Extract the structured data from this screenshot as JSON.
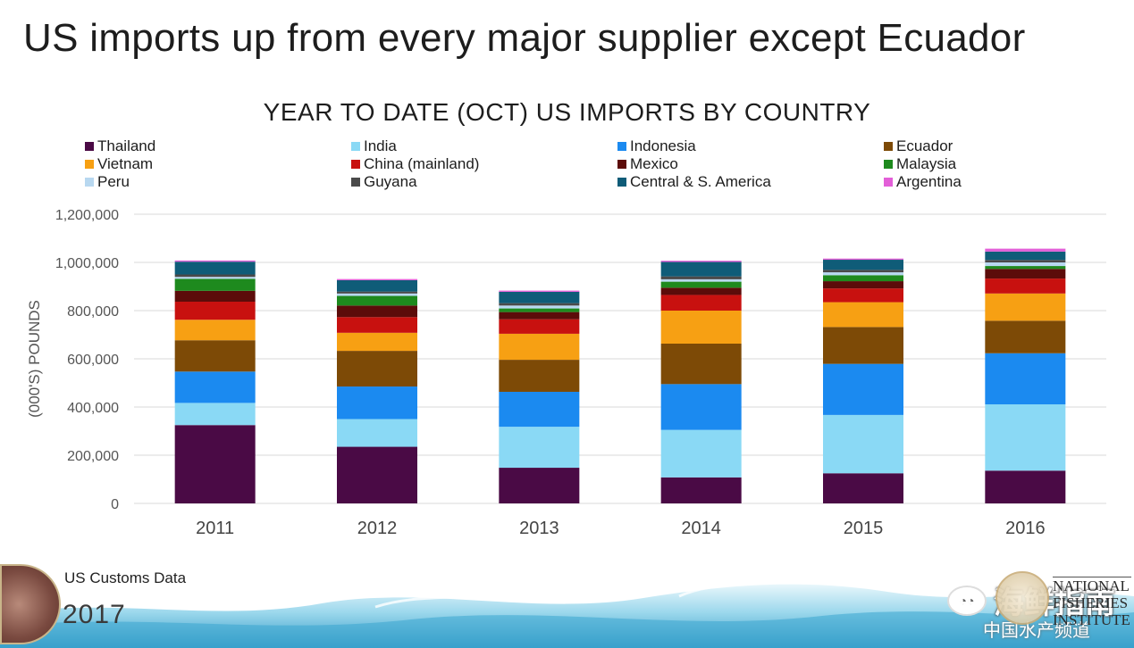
{
  "slide": {
    "title": "US imports up from every major supplier except Ecuador",
    "source": "US Customs Data",
    "year": "2017"
  },
  "watermark": {
    "text": "海鲜指南",
    "subtext": "中国水产频道"
  },
  "nfi_logo": {
    "line1": "NATIONAL",
    "line2": "FISHERIES",
    "line3": "INSTITUTE"
  },
  "chart_data": {
    "type": "bar",
    "stacked": true,
    "title": "YEAR TO DATE (OCT) US IMPORTS BY COUNTRY",
    "ylabel": "(000'S) POUNDS",
    "xlabel": "",
    "ylim": [
      0,
      1200000
    ],
    "yticks": [
      0,
      200000,
      400000,
      600000,
      800000,
      1000000,
      1200000
    ],
    "ytick_labels": [
      "0",
      "200,000",
      "400,000",
      "600,000",
      "800,000",
      "1,000,000",
      "1,200,000"
    ],
    "grid": true,
    "legend_position": "top",
    "categories": [
      "2011",
      "2012",
      "2013",
      "2014",
      "2015",
      "2016"
    ],
    "series": [
      {
        "name": "Thailand",
        "color": "#4a0a45",
        "values": [
          325000,
          235000,
          148000,
          108000,
          125000,
          136000
        ]
      },
      {
        "name": "India",
        "color": "#8ad9f5",
        "values": [
          92000,
          115000,
          170000,
          197000,
          242000,
          275000
        ]
      },
      {
        "name": "Indonesia",
        "color": "#1b8af0",
        "values": [
          130000,
          135000,
          145000,
          190000,
          212000,
          212000
        ]
      },
      {
        "name": "Ecuador",
        "color": "#7d4a06",
        "values": [
          130000,
          148000,
          133000,
          168000,
          153000,
          135000
        ]
      },
      {
        "name": "Vietnam",
        "color": "#f7a013",
        "values": [
          85000,
          75000,
          108000,
          137000,
          103000,
          113000
        ]
      },
      {
        "name": "China (mainland)",
        "color": "#c8110f",
        "values": [
          75000,
          65000,
          60000,
          65000,
          57000,
          62000
        ]
      },
      {
        "name": "Mexico",
        "color": "#5c0c0a",
        "values": [
          45000,
          48000,
          30000,
          30000,
          30000,
          40000
        ]
      },
      {
        "name": "Malaysia",
        "color": "#1e8a1e",
        "values": [
          50000,
          40000,
          15000,
          25000,
          25000,
          12000
        ]
      },
      {
        "name": "Peru",
        "color": "#b8d8f0",
        "values": [
          8000,
          10000,
          12000,
          10000,
          12000,
          15000
        ]
      },
      {
        "name": "Guyana",
        "color": "#4a4a4a",
        "values": [
          10000,
          8000,
          10000,
          12000,
          10000,
          10000
        ]
      },
      {
        "name": "Central & S. America",
        "color": "#0f5c78",
        "values": [
          53000,
          47000,
          47000,
          60000,
          42000,
          35000
        ]
      },
      {
        "name": "Argentina",
        "color": "#e35fd8",
        "values": [
          5000,
          5000,
          5000,
          5000,
          5000,
          12000
        ]
      }
    ]
  }
}
